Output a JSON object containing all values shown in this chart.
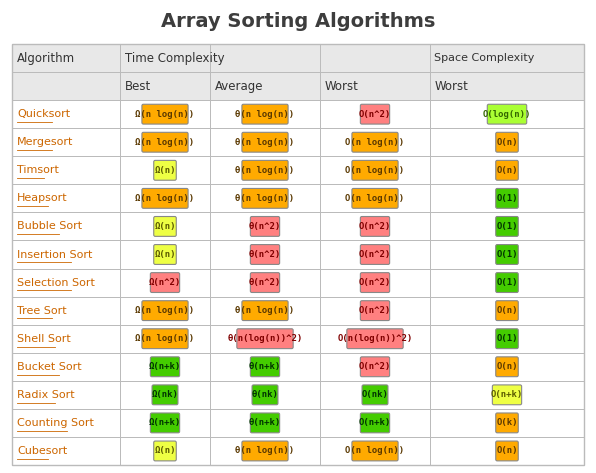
{
  "title": "Array Sorting Algorithms",
  "rows": [
    {
      "name": "Quicksort",
      "best": {
        "text": "Ω(n log(n))",
        "color": "#FFAA00",
        "text_color": "#5a3800"
      },
      "average": {
        "text": "θ(n log(n))",
        "color": "#FFAA00",
        "text_color": "#5a3800"
      },
      "worst": {
        "text": "O(n^2)",
        "color": "#FF8080",
        "text_color": "#800000"
      },
      "space": {
        "text": "O(log(n))",
        "color": "#AAFF33",
        "text_color": "#336600"
      }
    },
    {
      "name": "Mergesort",
      "best": {
        "text": "Ω(n log(n))",
        "color": "#FFAA00",
        "text_color": "#5a3800"
      },
      "average": {
        "text": "θ(n log(n))",
        "color": "#FFAA00",
        "text_color": "#5a3800"
      },
      "worst": {
        "text": "O(n log(n))",
        "color": "#FFAA00",
        "text_color": "#5a3800"
      },
      "space": {
        "text": "O(n)",
        "color": "#FFAA00",
        "text_color": "#5a3800"
      }
    },
    {
      "name": "Timsort",
      "best": {
        "text": "Ω(n)",
        "color": "#EEFF44",
        "text_color": "#5a5a00"
      },
      "average": {
        "text": "θ(n log(n))",
        "color": "#FFAA00",
        "text_color": "#5a3800"
      },
      "worst": {
        "text": "O(n log(n))",
        "color": "#FFAA00",
        "text_color": "#5a3800"
      },
      "space": {
        "text": "O(n)",
        "color": "#FFAA00",
        "text_color": "#5a3800"
      }
    },
    {
      "name": "Heapsort",
      "best": {
        "text": "Ω(n log(n))",
        "color": "#FFAA00",
        "text_color": "#5a3800"
      },
      "average": {
        "text": "θ(n log(n))",
        "color": "#FFAA00",
        "text_color": "#5a3800"
      },
      "worst": {
        "text": "O(n log(n))",
        "color": "#FFAA00",
        "text_color": "#5a3800"
      },
      "space": {
        "text": "O(1)",
        "color": "#44CC00",
        "text_color": "#003300"
      }
    },
    {
      "name": "Bubble Sort",
      "best": {
        "text": "Ω(n)",
        "color": "#EEFF44",
        "text_color": "#5a5a00"
      },
      "average": {
        "text": "θ(n^2)",
        "color": "#FF8080",
        "text_color": "#800000"
      },
      "worst": {
        "text": "O(n^2)",
        "color": "#FF8080",
        "text_color": "#800000"
      },
      "space": {
        "text": "O(1)",
        "color": "#44CC00",
        "text_color": "#003300"
      }
    },
    {
      "name": "Insertion Sort",
      "best": {
        "text": "Ω(n)",
        "color": "#EEFF44",
        "text_color": "#5a5a00"
      },
      "average": {
        "text": "θ(n^2)",
        "color": "#FF8080",
        "text_color": "#800000"
      },
      "worst": {
        "text": "O(n^2)",
        "color": "#FF8080",
        "text_color": "#800000"
      },
      "space": {
        "text": "O(1)",
        "color": "#44CC00",
        "text_color": "#003300"
      }
    },
    {
      "name": "Selection Sort",
      "best": {
        "text": "Ω(n^2)",
        "color": "#FF8080",
        "text_color": "#800000"
      },
      "average": {
        "text": "θ(n^2)",
        "color": "#FF8080",
        "text_color": "#800000"
      },
      "worst": {
        "text": "O(n^2)",
        "color": "#FF8080",
        "text_color": "#800000"
      },
      "space": {
        "text": "O(1)",
        "color": "#44CC00",
        "text_color": "#003300"
      }
    },
    {
      "name": "Tree Sort",
      "best": {
        "text": "Ω(n log(n))",
        "color": "#FFAA00",
        "text_color": "#5a3800"
      },
      "average": {
        "text": "θ(n log(n))",
        "color": "#FFAA00",
        "text_color": "#5a3800"
      },
      "worst": {
        "text": "O(n^2)",
        "color": "#FF8080",
        "text_color": "#800000"
      },
      "space": {
        "text": "O(n)",
        "color": "#FFAA00",
        "text_color": "#5a3800"
      }
    },
    {
      "name": "Shell Sort",
      "best": {
        "text": "Ω(n log(n))",
        "color": "#FFAA00",
        "text_color": "#5a3800"
      },
      "average": {
        "text": "θ(n(log(n))^2)",
        "color": "#FF8080",
        "text_color": "#800000"
      },
      "worst": {
        "text": "O(n(log(n))^2)",
        "color": "#FF8080",
        "text_color": "#800000"
      },
      "space": {
        "text": "O(1)",
        "color": "#44CC00",
        "text_color": "#003300"
      }
    },
    {
      "name": "Bucket Sort",
      "best": {
        "text": "Ω(n+k)",
        "color": "#44CC00",
        "text_color": "#003300"
      },
      "average": {
        "text": "θ(n+k)",
        "color": "#44CC00",
        "text_color": "#003300"
      },
      "worst": {
        "text": "O(n^2)",
        "color": "#FF8080",
        "text_color": "#800000"
      },
      "space": {
        "text": "O(n)",
        "color": "#FFAA00",
        "text_color": "#5a3800"
      }
    },
    {
      "name": "Radix Sort",
      "best": {
        "text": "Ω(nk)",
        "color": "#44CC00",
        "text_color": "#003300"
      },
      "average": {
        "text": "θ(nk)",
        "color": "#44CC00",
        "text_color": "#003300"
      },
      "worst": {
        "text": "O(nk)",
        "color": "#44CC00",
        "text_color": "#003300"
      },
      "space": {
        "text": "O(n+k)",
        "color": "#EEFF44",
        "text_color": "#5a5a00"
      }
    },
    {
      "name": "Counting Sort",
      "best": {
        "text": "Ω(n+k)",
        "color": "#44CC00",
        "text_color": "#003300"
      },
      "average": {
        "text": "θ(n+k)",
        "color": "#44CC00",
        "text_color": "#003300"
      },
      "worst": {
        "text": "O(n+k)",
        "color": "#44CC00",
        "text_color": "#003300"
      },
      "space": {
        "text": "O(k)",
        "color": "#FFAA00",
        "text_color": "#5a3800"
      }
    },
    {
      "name": "Cubesort",
      "best": {
        "text": "Ω(n)",
        "color": "#EEFF44",
        "text_color": "#5a5a00"
      },
      "average": {
        "text": "θ(n log(n))",
        "color": "#FFAA00",
        "text_color": "#5a3800"
      },
      "worst": {
        "text": "O(n log(n))",
        "color": "#FFAA00",
        "text_color": "#5a3800"
      },
      "space": {
        "text": "O(n)",
        "color": "#FFAA00",
        "text_color": "#5a3800"
      }
    }
  ],
  "bg_color": "#ffffff",
  "header_bg": "#e8e8e8",
  "border_color": "#bbbbbb",
  "title_color": "#3d3d3d",
  "algo_color": "#CC6600"
}
